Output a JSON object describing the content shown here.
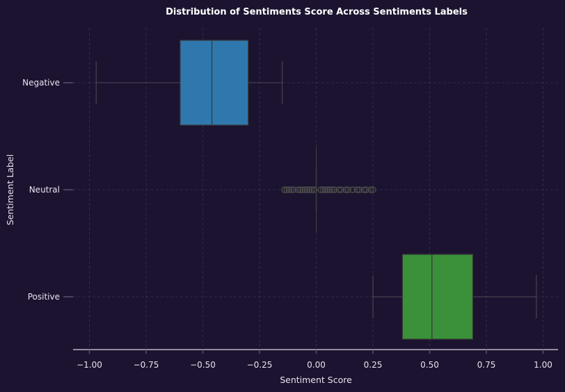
{
  "chart_data": {
    "type": "boxplot",
    "orientation": "horizontal",
    "title": "Distribution of Sentiments Score Across Sentiments Labels",
    "xlabel": "Sentiment Score",
    "ylabel": "Sentiment Label",
    "xlim": [
      -1.06,
      1.06
    ],
    "x_ticks": [
      -1.0,
      -0.75,
      -0.5,
      -0.25,
      0.0,
      0.25,
      0.5,
      0.75,
      1.0
    ],
    "x_tick_labels": [
      "−1.00",
      "−0.75",
      "−0.50",
      "−0.25",
      "0.00",
      "0.25",
      "0.50",
      "0.75",
      "1.00"
    ],
    "grid": true,
    "categories": [
      "Negative",
      "Neutral",
      "Positive"
    ],
    "series": [
      {
        "label": "Negative",
        "color": "#2f78ad",
        "whisker_low": -0.97,
        "q1": -0.6,
        "median": -0.46,
        "q3": -0.3,
        "whisker_high": -0.15,
        "fliers": []
      },
      {
        "label": "Neutral",
        "color": "#e8833a",
        "whisker_low": 0.0,
        "q1": 0.0,
        "median": 0.0,
        "q3": 0.0,
        "whisker_high": 0.0,
        "fliers": [
          -0.14,
          -0.13,
          -0.12,
          -0.11,
          -0.1,
          -0.08,
          -0.07,
          -0.06,
          -0.05,
          -0.04,
          -0.03,
          -0.02,
          -0.01,
          0.02,
          0.03,
          0.04,
          0.05,
          0.06,
          0.07,
          0.08,
          0.1,
          0.11,
          0.13,
          0.14,
          0.16,
          0.18,
          0.19,
          0.21,
          0.22,
          0.24,
          0.25
        ]
      },
      {
        "label": "Positive",
        "color": "#3a9139",
        "whisker_low": 0.25,
        "q1": 0.38,
        "median": 0.51,
        "q3": 0.69,
        "whisker_high": 0.97,
        "fliers": []
      }
    ]
  }
}
